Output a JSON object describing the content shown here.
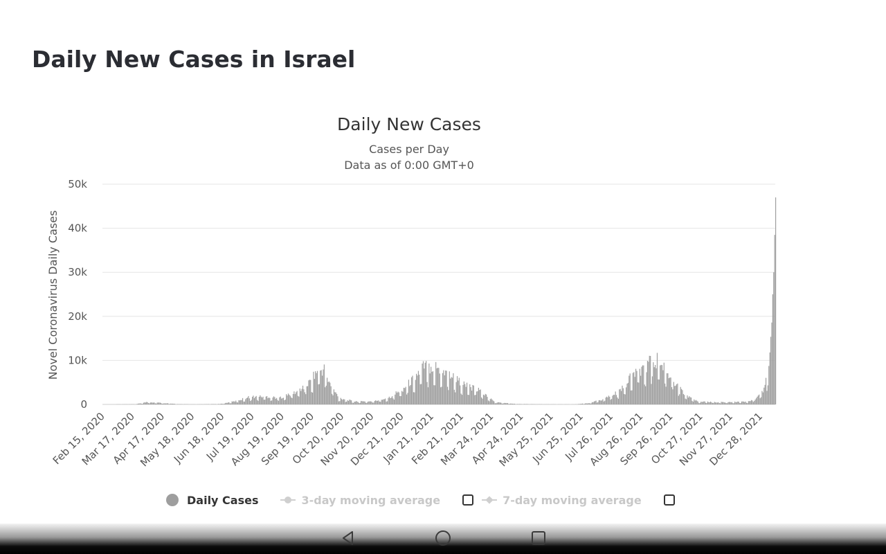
{
  "page": {
    "title": "Daily New Cases in Israel"
  },
  "legend": {
    "daily_cases": "Daily Cases",
    "ma3": "3-day moving average",
    "ma7": "7-day moving average"
  },
  "colors": {
    "bar": "#9e9e9e",
    "grid": "#e6e6e6",
    "legend_muted": "#c8c8c8"
  },
  "chart_data": {
    "type": "bar",
    "title": "Daily New Cases",
    "subtitle": "Cases per Day",
    "subtitle2": "Data as of 0:00 GMT+0",
    "ylabel": "Novel Coronavirus Daily Cases",
    "xlabel": "",
    "ylim": [
      0,
      50000
    ],
    "y_ticks": [
      "0",
      "10k",
      "20k",
      "30k",
      "40k",
      "50k"
    ],
    "x_start": "2020-02-15",
    "x_end": "2022-01-08",
    "x_tick_labels": [
      "Feb 15, 2020",
      "Mar 17, 2020",
      "Apr 17, 2020",
      "May 18, 2020",
      "Jun 18, 2020",
      "Jul 19, 2020",
      "Aug 19, 2020",
      "Sep 19, 2020",
      "Oct 20, 2020",
      "Nov 20, 2020",
      "Dec 21, 2020",
      "Jan 21, 2021",
      "Feb 21, 2021",
      "Mar 24, 2021",
      "Apr 24, 2021",
      "May 25, 2021",
      "Jun 25, 2021",
      "Jul 26, 2021",
      "Aug 26, 2021",
      "Sep 26, 2021",
      "Oct 27, 2021",
      "Nov 27, 2021",
      "Dec 28, 2021"
    ],
    "grid": true,
    "legend_position": "bottom",
    "series": [
      {
        "name": "Daily Cases",
        "trend_points": [
          [
            "2020-02-15",
            0
          ],
          [
            "2020-03-20",
            50
          ],
          [
            "2020-04-01",
            550
          ],
          [
            "2020-04-15",
            350
          ],
          [
            "2020-05-01",
            80
          ],
          [
            "2020-05-20",
            20
          ],
          [
            "2020-06-15",
            100
          ],
          [
            "2020-06-30",
            700
          ],
          [
            "2020-07-15",
            1700
          ],
          [
            "2020-07-31",
            1800
          ],
          [
            "2020-08-15",
            1500
          ],
          [
            "2020-09-01",
            2800
          ],
          [
            "2020-09-15",
            5000
          ],
          [
            "2020-09-22",
            7500
          ],
          [
            "2020-09-30",
            8000
          ],
          [
            "2020-10-05",
            5000
          ],
          [
            "2020-10-15",
            1500
          ],
          [
            "2020-10-31",
            650
          ],
          [
            "2020-11-20",
            700
          ],
          [
            "2020-12-05",
            1500
          ],
          [
            "2020-12-20",
            3500
          ],
          [
            "2021-01-01",
            6000
          ],
          [
            "2021-01-10",
            8500
          ],
          [
            "2021-01-20",
            8800
          ],
          [
            "2021-02-05",
            7000
          ],
          [
            "2021-02-21",
            4500
          ],
          [
            "2021-03-10",
            3000
          ],
          [
            "2021-03-25",
            500
          ],
          [
            "2021-04-15",
            120
          ],
          [
            "2021-05-15",
            30
          ],
          [
            "2021-06-15",
            20
          ],
          [
            "2021-06-30",
            300
          ],
          [
            "2021-07-15",
            1200
          ],
          [
            "2021-08-01",
            3000
          ],
          [
            "2021-08-15",
            7000
          ],
          [
            "2021-08-31",
            9500
          ],
          [
            "2021-09-08",
            10000
          ],
          [
            "2021-09-20",
            7000
          ],
          [
            "2021-10-05",
            2500
          ],
          [
            "2021-10-20",
            600
          ],
          [
            "2021-11-15",
            500
          ],
          [
            "2021-12-10",
            600
          ],
          [
            "2021-12-20",
            1500
          ],
          [
            "2021-12-28",
            4000
          ],
          [
            "2022-01-01",
            9000
          ],
          [
            "2022-01-04",
            20000
          ],
          [
            "2022-01-06",
            30000
          ],
          [
            "2022-01-08",
            47000
          ]
        ]
      }
    ]
  },
  "nav": {}
}
